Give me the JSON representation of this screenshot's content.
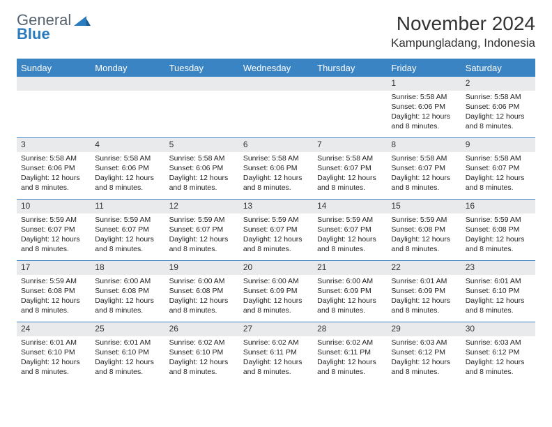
{
  "logo": {
    "word1": "General",
    "word2": "Blue"
  },
  "colors": {
    "header_bg": "#3b84c4",
    "header_fg": "#ffffff",
    "daynum_bg": "#e9eaeb",
    "border": "#3b84c4",
    "logo_gray": "#57636e",
    "logo_blue": "#2b7bbf"
  },
  "title": "November 2024",
  "location": "Kampungladang, Indonesia",
  "day_headers": [
    "Sunday",
    "Monday",
    "Tuesday",
    "Wednesday",
    "Thursday",
    "Friday",
    "Saturday"
  ],
  "weeks": [
    [
      {
        "num": "",
        "sunrise": "",
        "sunset": "",
        "daylight": ""
      },
      {
        "num": "",
        "sunrise": "",
        "sunset": "",
        "daylight": ""
      },
      {
        "num": "",
        "sunrise": "",
        "sunset": "",
        "daylight": ""
      },
      {
        "num": "",
        "sunrise": "",
        "sunset": "",
        "daylight": ""
      },
      {
        "num": "",
        "sunrise": "",
        "sunset": "",
        "daylight": ""
      },
      {
        "num": "1",
        "sunrise": "Sunrise: 5:58 AM",
        "sunset": "Sunset: 6:06 PM",
        "daylight": "Daylight: 12 hours and 8 minutes."
      },
      {
        "num": "2",
        "sunrise": "Sunrise: 5:58 AM",
        "sunset": "Sunset: 6:06 PM",
        "daylight": "Daylight: 12 hours and 8 minutes."
      }
    ],
    [
      {
        "num": "3",
        "sunrise": "Sunrise: 5:58 AM",
        "sunset": "Sunset: 6:06 PM",
        "daylight": "Daylight: 12 hours and 8 minutes."
      },
      {
        "num": "4",
        "sunrise": "Sunrise: 5:58 AM",
        "sunset": "Sunset: 6:06 PM",
        "daylight": "Daylight: 12 hours and 8 minutes."
      },
      {
        "num": "5",
        "sunrise": "Sunrise: 5:58 AM",
        "sunset": "Sunset: 6:06 PM",
        "daylight": "Daylight: 12 hours and 8 minutes."
      },
      {
        "num": "6",
        "sunrise": "Sunrise: 5:58 AM",
        "sunset": "Sunset: 6:06 PM",
        "daylight": "Daylight: 12 hours and 8 minutes."
      },
      {
        "num": "7",
        "sunrise": "Sunrise: 5:58 AM",
        "sunset": "Sunset: 6:07 PM",
        "daylight": "Daylight: 12 hours and 8 minutes."
      },
      {
        "num": "8",
        "sunrise": "Sunrise: 5:58 AM",
        "sunset": "Sunset: 6:07 PM",
        "daylight": "Daylight: 12 hours and 8 minutes."
      },
      {
        "num": "9",
        "sunrise": "Sunrise: 5:58 AM",
        "sunset": "Sunset: 6:07 PM",
        "daylight": "Daylight: 12 hours and 8 minutes."
      }
    ],
    [
      {
        "num": "10",
        "sunrise": "Sunrise: 5:59 AM",
        "sunset": "Sunset: 6:07 PM",
        "daylight": "Daylight: 12 hours and 8 minutes."
      },
      {
        "num": "11",
        "sunrise": "Sunrise: 5:59 AM",
        "sunset": "Sunset: 6:07 PM",
        "daylight": "Daylight: 12 hours and 8 minutes."
      },
      {
        "num": "12",
        "sunrise": "Sunrise: 5:59 AM",
        "sunset": "Sunset: 6:07 PM",
        "daylight": "Daylight: 12 hours and 8 minutes."
      },
      {
        "num": "13",
        "sunrise": "Sunrise: 5:59 AM",
        "sunset": "Sunset: 6:07 PM",
        "daylight": "Daylight: 12 hours and 8 minutes."
      },
      {
        "num": "14",
        "sunrise": "Sunrise: 5:59 AM",
        "sunset": "Sunset: 6:07 PM",
        "daylight": "Daylight: 12 hours and 8 minutes."
      },
      {
        "num": "15",
        "sunrise": "Sunrise: 5:59 AM",
        "sunset": "Sunset: 6:08 PM",
        "daylight": "Daylight: 12 hours and 8 minutes."
      },
      {
        "num": "16",
        "sunrise": "Sunrise: 5:59 AM",
        "sunset": "Sunset: 6:08 PM",
        "daylight": "Daylight: 12 hours and 8 minutes."
      }
    ],
    [
      {
        "num": "17",
        "sunrise": "Sunrise: 5:59 AM",
        "sunset": "Sunset: 6:08 PM",
        "daylight": "Daylight: 12 hours and 8 minutes."
      },
      {
        "num": "18",
        "sunrise": "Sunrise: 6:00 AM",
        "sunset": "Sunset: 6:08 PM",
        "daylight": "Daylight: 12 hours and 8 minutes."
      },
      {
        "num": "19",
        "sunrise": "Sunrise: 6:00 AM",
        "sunset": "Sunset: 6:08 PM",
        "daylight": "Daylight: 12 hours and 8 minutes."
      },
      {
        "num": "20",
        "sunrise": "Sunrise: 6:00 AM",
        "sunset": "Sunset: 6:09 PM",
        "daylight": "Daylight: 12 hours and 8 minutes."
      },
      {
        "num": "21",
        "sunrise": "Sunrise: 6:00 AM",
        "sunset": "Sunset: 6:09 PM",
        "daylight": "Daylight: 12 hours and 8 minutes."
      },
      {
        "num": "22",
        "sunrise": "Sunrise: 6:01 AM",
        "sunset": "Sunset: 6:09 PM",
        "daylight": "Daylight: 12 hours and 8 minutes."
      },
      {
        "num": "23",
        "sunrise": "Sunrise: 6:01 AM",
        "sunset": "Sunset: 6:10 PM",
        "daylight": "Daylight: 12 hours and 8 minutes."
      }
    ],
    [
      {
        "num": "24",
        "sunrise": "Sunrise: 6:01 AM",
        "sunset": "Sunset: 6:10 PM",
        "daylight": "Daylight: 12 hours and 8 minutes."
      },
      {
        "num": "25",
        "sunrise": "Sunrise: 6:01 AM",
        "sunset": "Sunset: 6:10 PM",
        "daylight": "Daylight: 12 hours and 8 minutes."
      },
      {
        "num": "26",
        "sunrise": "Sunrise: 6:02 AM",
        "sunset": "Sunset: 6:10 PM",
        "daylight": "Daylight: 12 hours and 8 minutes."
      },
      {
        "num": "27",
        "sunrise": "Sunrise: 6:02 AM",
        "sunset": "Sunset: 6:11 PM",
        "daylight": "Daylight: 12 hours and 8 minutes."
      },
      {
        "num": "28",
        "sunrise": "Sunrise: 6:02 AM",
        "sunset": "Sunset: 6:11 PM",
        "daylight": "Daylight: 12 hours and 8 minutes."
      },
      {
        "num": "29",
        "sunrise": "Sunrise: 6:03 AM",
        "sunset": "Sunset: 6:12 PM",
        "daylight": "Daylight: 12 hours and 8 minutes."
      },
      {
        "num": "30",
        "sunrise": "Sunrise: 6:03 AM",
        "sunset": "Sunset: 6:12 PM",
        "daylight": "Daylight: 12 hours and 8 minutes."
      }
    ]
  ]
}
